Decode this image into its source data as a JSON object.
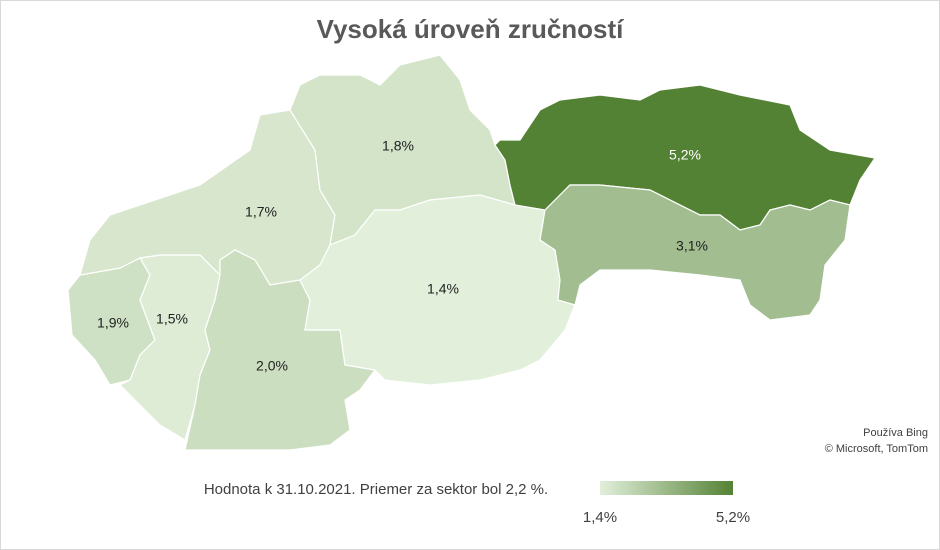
{
  "chart_data": {
    "type": "choropleth",
    "title": "Vysoká úroveň zručností",
    "values": [
      1.9,
      1.5,
      1.7,
      2.0,
      1.8,
      1.4,
      5.2,
      3.1
    ],
    "value_labels": [
      "1,9%",
      "1,5%",
      "1,7%",
      "2,0%",
      "1,8%",
      "1,4%",
      "5,2%",
      "3,1%"
    ],
    "note": "Hodnota k 31.10.2021. Priemer za sektor bol 2,2 %.",
    "attribution": [
      "Používa Bing",
      "© Microsoft, TomTom"
    ],
    "colors": [
      "#e2efda",
      "#548235"
    ],
    "clim": [
      1.4,
      5.2
    ],
    "cticks": [
      {
        "value": 1.4,
        "label": "1,4%"
      },
      {
        "value": 5.2,
        "label": "5,2%"
      }
    ]
  }
}
